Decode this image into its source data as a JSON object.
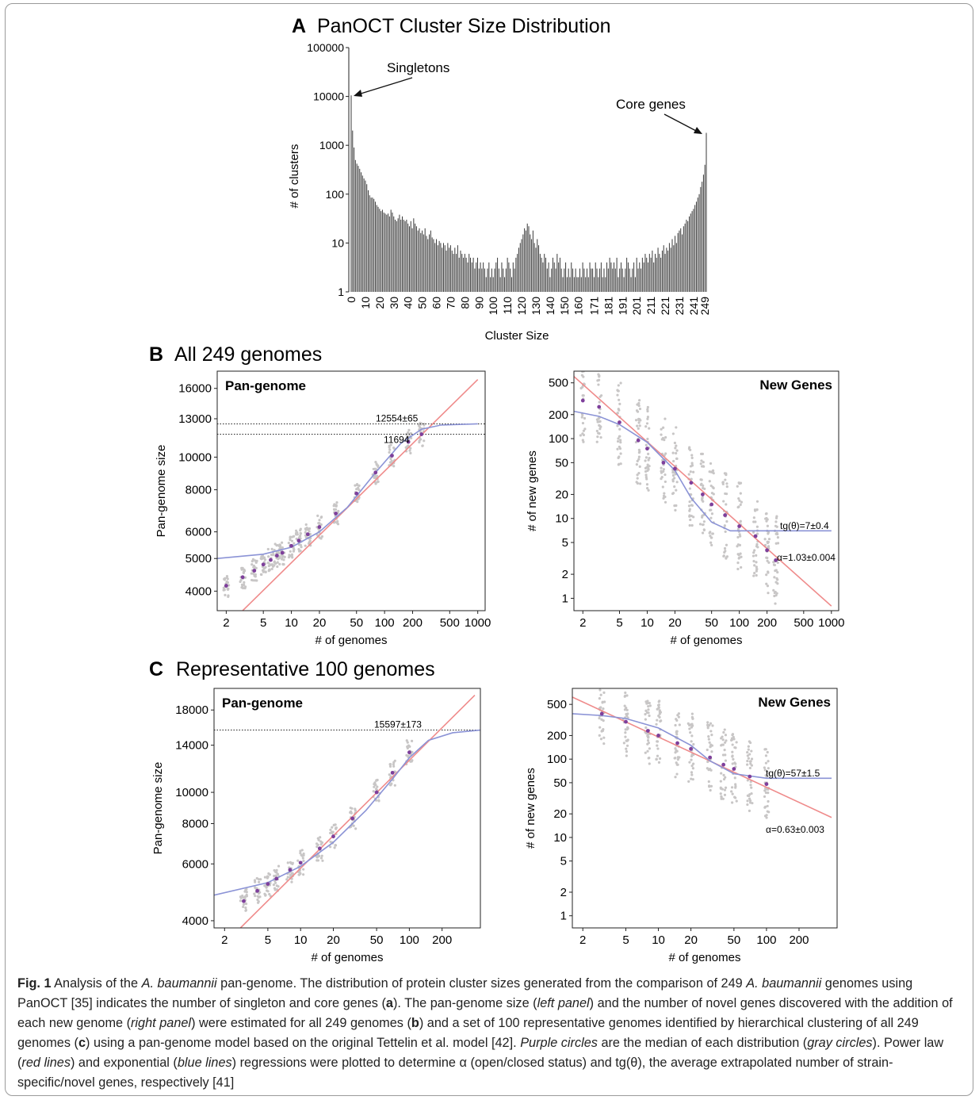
{
  "chart_data": [
    {
      "id": "A",
      "type": "bar",
      "panel_letter": "A",
      "title": "PanOCT Cluster Size Distribution",
      "xlabel": "Cluster Size",
      "ylabel": "# of clusters",
      "yscale": "log",
      "ylim": [
        1,
        100000
      ],
      "yticks": [
        "100000",
        "10000",
        "1000",
        "100",
        "10",
        "1"
      ],
      "ytick_values": [
        100000,
        10000,
        1000,
        100,
        10,
        1
      ],
      "xtick_labels": [
        "0",
        "10",
        "20",
        "30",
        "40",
        "50",
        "60",
        "70",
        "80",
        "90",
        "100",
        "110",
        "120",
        "130",
        "140",
        "150",
        "160",
        "171",
        "181",
        "191",
        "201",
        "211",
        "221",
        "231",
        "241",
        "249"
      ],
      "annotations": [
        {
          "text": "Singletons"
        },
        {
          "text": "Core genes"
        }
      ],
      "values": [
        10500,
        2000,
        900,
        500,
        420,
        380,
        330,
        280,
        240,
        210,
        190,
        160,
        120,
        95,
        85,
        85,
        80,
        70,
        60,
        55,
        50,
        45,
        48,
        42,
        40,
        38,
        40,
        35,
        48,
        42,
        35,
        30,
        28,
        32,
        38,
        30,
        35,
        30,
        28,
        30,
        25,
        22,
        28,
        20,
        32,
        25,
        22,
        18,
        20,
        16,
        18,
        15,
        20,
        14,
        12,
        15,
        18,
        13,
        12,
        10,
        12,
        9,
        11,
        10,
        8,
        10,
        9,
        7,
        10,
        8,
        9,
        7,
        6,
        8,
        6,
        9,
        5,
        7,
        6,
        5,
        6,
        5,
        4,
        6,
        5,
        4,
        5,
        3,
        4,
        5,
        3,
        4,
        3,
        4,
        3,
        2,
        3,
        4,
        2,
        3,
        2,
        3,
        4,
        5,
        3,
        2,
        4,
        3,
        2,
        3,
        5,
        4,
        3,
        2,
        4,
        3,
        5,
        6,
        8,
        10,
        12,
        15,
        20,
        18,
        25,
        22,
        15,
        12,
        18,
        10,
        8,
        12,
        9,
        6,
        5,
        4,
        6,
        5,
        3,
        4,
        2,
        3,
        5,
        4,
        3,
        6,
        4,
        5,
        3,
        2,
        3,
        4,
        2,
        3,
        2,
        4,
        3,
        2,
        3,
        2,
        2,
        3,
        2,
        4,
        3,
        2,
        3,
        2,
        4,
        3,
        3,
        2,
        4,
        3,
        2,
        3,
        4,
        2,
        3,
        2,
        4,
        3,
        5,
        4,
        3,
        4,
        3,
        5,
        2,
        3,
        4,
        3,
        2,
        3,
        5,
        4,
        3,
        2,
        3,
        4,
        2,
        5,
        3,
        4,
        3,
        5,
        4,
        6,
        5,
        4,
        6,
        5,
        7,
        4,
        6,
        5,
        8,
        6,
        5,
        7,
        9,
        6,
        8,
        7,
        10,
        8,
        12,
        9,
        14,
        10,
        16,
        18,
        20,
        15,
        22,
        25,
        30,
        28,
        35,
        40,
        45,
        50,
        60,
        70,
        85,
        100,
        140,
        180,
        250,
        400,
        1800
      ]
    },
    {
      "id": "B-left",
      "type": "scatter",
      "panel_title": "Pan-genome",
      "xlabel": "# of genomes",
      "ylabel": "Pan-genome size",
      "xscale": "log",
      "yscale": "log",
      "xlim": [
        1.6,
        1200
      ],
      "ylim": [
        3500,
        18000
      ],
      "xticks": [
        "2",
        "5",
        "10",
        "20",
        "50",
        "100",
        "200",
        "500",
        "1000"
      ],
      "xtick_values": [
        2,
        5,
        10,
        20,
        50,
        100,
        200,
        500,
        1000
      ],
      "yticks": [
        "4000",
        "5000",
        "6000",
        "8000",
        "10000",
        "13000",
        "16000"
      ],
      "ytick_values": [
        4000,
        5000,
        6000,
        8000,
        10000,
        13000,
        16000
      ],
      "annotations": [
        {
          "text": "12554±65",
          "y": 12554
        },
        {
          "text": "11694",
          "y": 11694
        }
      ],
      "series": [
        {
          "role": "median",
          "x": [
            2,
            3,
            4,
            5,
            6,
            7,
            8,
            10,
            12,
            15,
            20,
            30,
            50,
            80,
            120,
            180,
            249
          ],
          "y": [
            4150,
            4400,
            4600,
            4800,
            4950,
            5100,
            5200,
            5450,
            5650,
            5900,
            6200,
            6800,
            7800,
            9000,
            10100,
            11100,
            11694
          ]
        },
        {
          "role": "power-law fit",
          "x": [
            3,
            1000
          ],
          "y": [
            3500,
            17000
          ]
        },
        {
          "role": "exponential fit",
          "x": [
            1.6,
            5,
            10,
            20,
            40,
            80,
            150,
            249,
            400,
            1000
          ],
          "y": [
            5000,
            5150,
            5400,
            6000,
            7100,
            9000,
            11000,
            12100,
            12450,
            12554
          ]
        }
      ]
    },
    {
      "id": "B-right",
      "type": "scatter",
      "panel_title": "New Genes",
      "xlabel": "# of genomes",
      "ylabel": "# of new genes",
      "xscale": "log",
      "yscale": "log",
      "xlim": [
        1.6,
        1200
      ],
      "ylim": [
        0.7,
        700
      ],
      "xticks": [
        "2",
        "5",
        "10",
        "20",
        "50",
        "100",
        "200",
        "500",
        "1000"
      ],
      "xtick_values": [
        2,
        5,
        10,
        20,
        50,
        100,
        200,
        500,
        1000
      ],
      "yticks": [
        "1",
        "2",
        "5",
        "10",
        "20",
        "50",
        "100",
        "200",
        "500"
      ],
      "ytick_values": [
        1,
        2,
        5,
        10,
        20,
        50,
        100,
        200,
        500
      ],
      "annotations": [
        {
          "text": "tg(θ)=7±0.4"
        },
        {
          "text": "α=1.03±0.004"
        }
      ],
      "series": [
        {
          "role": "median",
          "x": [
            2,
            3,
            5,
            8,
            10,
            15,
            20,
            30,
            40,
            50,
            70,
            100,
            150,
            200,
            249
          ],
          "y": [
            300,
            250,
            160,
            95,
            75,
            50,
            42,
            28,
            20,
            15,
            11,
            8,
            6,
            4,
            3
          ]
        },
        {
          "role": "power-law fit",
          "x": [
            1.6,
            1000
          ],
          "y": [
            600,
            0.8
          ]
        },
        {
          "role": "exponential fit",
          "x": [
            1.6,
            3,
            5,
            10,
            20,
            30,
            50,
            80,
            249,
            1000
          ],
          "y": [
            220,
            190,
            150,
            90,
            40,
            18,
            9,
            7,
            7,
            7
          ]
        }
      ]
    },
    {
      "id": "C-left",
      "type": "scatter",
      "panel_title": "Pan-genome",
      "xlabel": "# of genomes",
      "ylabel": "Pan-genome size",
      "xscale": "log",
      "yscale": "log",
      "xlim": [
        1.6,
        450
      ],
      "ylim": [
        3800,
        21000
      ],
      "xticks": [
        "2",
        "5",
        "10",
        "20",
        "50",
        "100",
        "200"
      ],
      "xtick_values": [
        2,
        5,
        10,
        20,
        50,
        100,
        200
      ],
      "yticks": [
        "4000",
        "6000",
        "8000",
        "10000",
        "14000",
        "18000"
      ],
      "ytick_values": [
        4000,
        6000,
        8000,
        10000,
        14000,
        18000
      ],
      "annotations": [
        {
          "text": "15597±173",
          "y": 15597
        }
      ],
      "series": [
        {
          "role": "median",
          "x": [
            3,
            4,
            5,
            6,
            8,
            10,
            15,
            20,
            30,
            50,
            70,
            100
          ],
          "y": [
            4600,
            4950,
            5200,
            5400,
            5750,
            6050,
            6700,
            7300,
            8300,
            10000,
            11500,
            13300
          ]
        },
        {
          "role": "power-law fit",
          "x": [
            2.8,
            400
          ],
          "y": [
            3800,
            20000
          ]
        },
        {
          "role": "exponential fit",
          "x": [
            1.6,
            5,
            10,
            20,
            40,
            70,
            100,
            150,
            250,
            450
          ],
          "y": [
            4800,
            5250,
            5900,
            7000,
            8800,
            11000,
            12800,
            14500,
            15300,
            15597
          ]
        }
      ]
    },
    {
      "id": "C-right",
      "type": "scatter",
      "panel_title": "New Genes",
      "xlabel": "# of genomes",
      "ylabel": "# of new genes",
      "xscale": "log",
      "yscale": "log",
      "xlim": [
        1.6,
        450
      ],
      "ylim": [
        0.7,
        800
      ],
      "xticks": [
        "2",
        "5",
        "10",
        "20",
        "50",
        "100",
        "200"
      ],
      "xtick_values": [
        2,
        5,
        10,
        20,
        50,
        100,
        200
      ],
      "yticks": [
        "1",
        "2",
        "5",
        "10",
        "20",
        "50",
        "100",
        "200",
        "500"
      ],
      "ytick_values": [
        1,
        2,
        5,
        10,
        20,
        50,
        100,
        200,
        500
      ],
      "annotations": [
        {
          "text": "tg(θ)=57±1.5"
        },
        {
          "text": "α=0.63±0.003"
        }
      ],
      "series": [
        {
          "role": "median",
          "x": [
            3,
            5,
            8,
            10,
            15,
            20,
            30,
            40,
            50,
            70,
            100
          ],
          "y": [
            380,
            300,
            230,
            200,
            160,
            135,
            105,
            85,
            75,
            60,
            48
          ]
        },
        {
          "role": "power-law fit",
          "x": [
            1.6,
            400
          ],
          "y": [
            620,
            18
          ]
        },
        {
          "role": "exponential fit",
          "x": [
            1.6,
            3,
            5,
            10,
            20,
            30,
            50,
            100,
            400
          ],
          "y": [
            380,
            360,
            330,
            250,
            150,
            95,
            65,
            57,
            57
          ]
        }
      ]
    }
  ],
  "section_titles": {
    "B": {
      "letter": "B",
      "text": "All 249 genomes"
    },
    "C": {
      "letter": "C",
      "text": "Representative 100 genomes"
    }
  },
  "caption": {
    "fig_label": "Fig. 1",
    "s1": " Analysis of the ",
    "species1": "A. baumannii",
    "s2": " pan-genome. The distribution of protein cluster sizes generated from the comparison of 249 ",
    "species2": "A. baumannii",
    "s3": " genomes using PanOCT [35] indicates the number of singleton and core genes (",
    "ref_a": "a",
    "s4": "). The pan-genome size (",
    "left_panel": "left panel",
    "s5": ") and the number of novel genes discovered with the addition of each new genome (",
    "right_panel": "right panel",
    "s6": ") were estimated for all 249 genomes (",
    "ref_b": "b",
    "s7": ") and a set of 100 representative genomes identified by hierarchical clustering of all 249 genomes (",
    "ref_c": "c",
    "s8": ") using a pan-genome model based on the original Tettelin et al. model [42]. ",
    "purple_circles": "Purple circles",
    "s9": " are the median of each distribution (",
    "gray_circles": "gray circles",
    "s10": "). Power law (",
    "red_lines": "red lines",
    "s11": ") and exponential (",
    "blue_lines": "blue lines",
    "s12": ") regressions were plotted to determine α (open/closed status) and tg(θ), the average extrapolated number of strain-specific/novel genes, respectively [41]"
  },
  "colors": {
    "points": "#c8c6c6",
    "median": "#7e3f9b",
    "power_law": "#ef8b8b",
    "exponential": "#8b93d6",
    "bars": "#3a3a3a"
  }
}
